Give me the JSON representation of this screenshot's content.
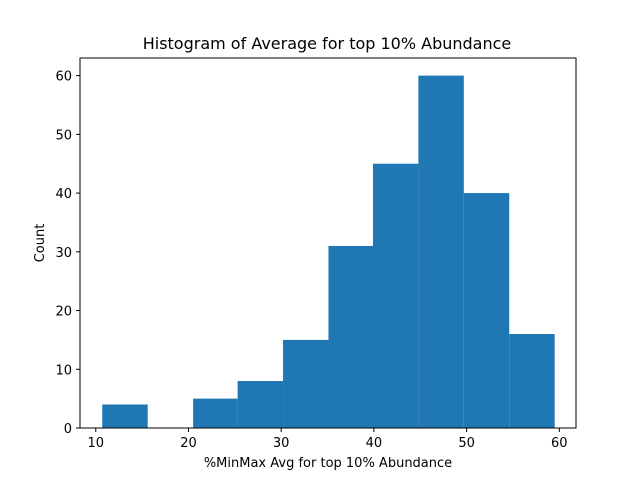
{
  "chart_data": {
    "type": "bar",
    "title": "Histogram of Average for top 10% Abundance",
    "xlabel": "%MinMax Avg for top 10% Abundance",
    "ylabel": "Count",
    "xlim": [
      8.3,
      61.8
    ],
    "ylim": [
      0,
      63
    ],
    "xticks": [
      10,
      20,
      30,
      40,
      50,
      60
    ],
    "yticks": [
      0,
      10,
      20,
      30,
      40,
      50,
      60
    ],
    "bar_color": "#1f77b4",
    "bins": [
      {
        "x0": 10.7,
        "x1": 15.6,
        "count": 4
      },
      {
        "x0": 15.6,
        "x1": 20.5,
        "count": 0
      },
      {
        "x0": 20.5,
        "x1": 25.3,
        "count": 5
      },
      {
        "x0": 25.3,
        "x1": 30.2,
        "count": 8
      },
      {
        "x0": 30.2,
        "x1": 35.1,
        "count": 15
      },
      {
        "x0": 35.1,
        "x1": 39.9,
        "count": 31
      },
      {
        "x0": 39.9,
        "x1": 44.8,
        "count": 45
      },
      {
        "x0": 44.8,
        "x1": 49.7,
        "count": 60
      },
      {
        "x0": 49.7,
        "x1": 54.6,
        "count": 40
      },
      {
        "x0": 54.6,
        "x1": 59.5,
        "count": 16
      }
    ]
  }
}
